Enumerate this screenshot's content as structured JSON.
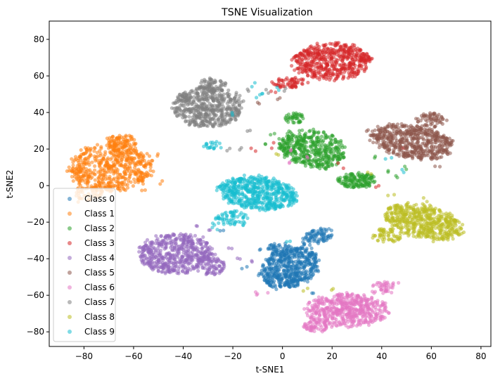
{
  "chart_data": {
    "type": "scatter",
    "title": "TSNE Visualization",
    "xlabel": "t-SNE1",
    "ylabel": "t-SNE2",
    "xlim": [
      -94,
      84
    ],
    "ylim": [
      -88,
      90
    ],
    "xticks": [
      -80,
      -60,
      -40,
      -20,
      0,
      20,
      40,
      60,
      80
    ],
    "yticks": [
      -80,
      -60,
      -40,
      -20,
      0,
      20,
      40,
      60,
      80
    ],
    "grid": false,
    "legend_position": "lower-left",
    "marker_alpha": 0.55,
    "series": [
      {
        "name": "Class 0",
        "color": "#1f77b4",
        "clusters": [
          {
            "center": [
              3,
              -45
            ],
            "rx": 13,
            "ry": 10,
            "n": 520,
            "angle": 0.7
          },
          {
            "center": [
              -1,
              -35
            ],
            "rx": 5,
            "ry": 4,
            "n": 50,
            "angle": 0.0
          },
          {
            "center": [
              14,
              -28
            ],
            "rx": 7,
            "ry": 4,
            "n": 80,
            "angle": 0.5
          }
        ],
        "outliers": [
          [
            -25,
            -25
          ],
          [
            -10,
            -35
          ],
          [
            -15,
            -45
          ],
          [
            12,
            -58
          ]
        ]
      },
      {
        "name": "Class 1",
        "color": "#ff7f0e",
        "clusters": [
          {
            "center": [
              -69,
              10
            ],
            "rx": 17,
            "ry": 13,
            "n": 560,
            "angle": 0.05
          },
          {
            "center": [
              -65,
              24
            ],
            "rx": 6,
            "ry": 4,
            "n": 70,
            "angle": 0.0
          },
          {
            "center": [
              -78,
              -4
            ],
            "rx": 6,
            "ry": 4,
            "n": 50,
            "angle": 0.0
          }
        ],
        "outliers": [
          [
            -50,
            17
          ],
          [
            -54,
            7
          ],
          [
            -48,
            2
          ],
          [
            -83,
            -8
          ],
          [
            -56,
            -2
          ]
        ]
      },
      {
        "name": "Class 2",
        "color": "#2ca02c",
        "clusters": [
          {
            "center": [
              12,
              20
            ],
            "rx": 14,
            "ry": 10,
            "n": 440,
            "angle": -0.35
          },
          {
            "center": [
              30,
              3
            ],
            "rx": 8,
            "ry": 4,
            "n": 140,
            "angle": 0.0
          },
          {
            "center": [
              5,
              37
            ],
            "rx": 4,
            "ry": 3,
            "n": 40,
            "angle": 0.0
          }
        ],
        "outliers": [
          [
            37,
            15
          ],
          [
            42,
            8
          ],
          [
            -8,
            22
          ],
          [
            -3,
            28
          ],
          [
            46,
            5
          ],
          [
            49,
            10
          ]
        ]
      },
      {
        "name": "Class 3",
        "color": "#d62728",
        "clusters": [
          {
            "center": [
              20,
              68
            ],
            "rx": 16,
            "ry": 10,
            "n": 520,
            "angle": 0.05
          },
          {
            "center": [
              3,
              56
            ],
            "rx": 7,
            "ry": 3,
            "n": 60,
            "angle": 0.0
          }
        ],
        "outliers": [
          [
            -4,
            22
          ],
          [
            -12,
            20
          ],
          [
            24,
            10
          ],
          [
            48,
            21
          ],
          [
            38,
            0
          ],
          [
            -3,
            50
          ]
        ]
      },
      {
        "name": "Class 4",
        "color": "#9467bd",
        "clusters": [
          {
            "center": [
              -43,
              -37
            ],
            "rx": 15,
            "ry": 11,
            "n": 520,
            "angle": 0.05
          },
          {
            "center": [
              -29,
              -44
            ],
            "rx": 6,
            "ry": 5,
            "n": 80,
            "angle": 0.0
          }
        ],
        "outliers": [
          [
            -30,
            -24
          ],
          [
            -18,
            -40
          ],
          [
            -22,
            -34
          ],
          [
            -35,
            -22
          ],
          [
            -12,
            -42
          ]
        ]
      },
      {
        "name": "Class 5",
        "color": "#8c564b",
        "clusters": [
          {
            "center": [
              52,
              24
            ],
            "rx": 17,
            "ry": 9,
            "n": 520,
            "angle": -0.25
          },
          {
            "center": [
              60,
              36
            ],
            "rx": 6,
            "ry": 4,
            "n": 60,
            "angle": 0.0
          }
        ],
        "outliers": [
          [
            -2,
            48
          ],
          [
            38,
            27
          ],
          [
            34,
            30
          ],
          [
            62,
            10
          ],
          [
            -10,
            44
          ]
        ]
      },
      {
        "name": "Class 6",
        "color": "#e377c2",
        "clusters": [
          {
            "center": [
              26,
              -68
            ],
            "rx": 17,
            "ry": 9,
            "n": 520,
            "angle": 0.0
          },
          {
            "center": [
              14,
              -77
            ],
            "rx": 6,
            "ry": 3,
            "n": 60,
            "angle": 0.0
          },
          {
            "center": [
              40,
              -56
            ],
            "rx": 5,
            "ry": 4,
            "n": 40,
            "angle": 0.0
          }
        ],
        "outliers": [
          [
            10,
            16
          ],
          [
            3,
            12
          ],
          [
            -8,
            -58
          ],
          [
            -10,
            -60
          ],
          [
            46,
            -53
          ],
          [
            4,
            20
          ]
        ]
      },
      {
        "name": "Class 7",
        "color": "#7f7f7f",
        "clusters": [
          {
            "center": [
              -30,
              43
            ],
            "rx": 14,
            "ry": 11,
            "n": 520,
            "angle": 0.05
          },
          {
            "center": [
              -28,
              55
            ],
            "rx": 6,
            "ry": 4,
            "n": 60,
            "angle": 0.0
          }
        ],
        "outliers": [
          [
            -22,
            20
          ],
          [
            -18,
            20
          ],
          [
            2,
            52
          ],
          [
            -6,
            52
          ],
          [
            -14,
            30
          ],
          [
            -14,
            52
          ]
        ]
      },
      {
        "name": "Class 8",
        "color": "#bcbd22",
        "clusters": [
          {
            "center": [
              57,
              -20
            ],
            "rx": 16,
            "ry": 9,
            "n": 520,
            "angle": -0.35
          },
          {
            "center": [
              42,
              -27
            ],
            "rx": 6,
            "ry": 4,
            "n": 60,
            "angle": 0.0
          }
        ],
        "outliers": [
          [
            -2,
            17
          ],
          [
            9,
            -56
          ],
          [
            20,
            -56
          ],
          [
            36,
            7
          ],
          [
            58,
            -8
          ],
          [
            44,
            -6
          ]
        ]
      },
      {
        "name": "Class 9",
        "color": "#17becf",
        "clusters": [
          {
            "center": [
              -10,
              -4
            ],
            "rx": 16,
            "ry": 9,
            "n": 560,
            "angle": -0.15
          },
          {
            "center": [
              -20,
              -18
            ],
            "rx": 7,
            "ry": 4,
            "n": 60,
            "angle": 0.0
          },
          {
            "center": [
              -28,
              22
            ],
            "rx": 4,
            "ry": 2,
            "n": 20,
            "angle": 0.0
          }
        ],
        "outliers": [
          [
            -28,
            -22
          ],
          [
            -26,
            -24
          ],
          [
            -20,
            38
          ],
          [
            -12,
            55
          ],
          [
            -8,
            50
          ],
          [
            -2,
            52
          ],
          [
            -10,
            48
          ],
          [
            42,
            14
          ],
          [
            48,
            8
          ],
          [
            -16,
            -22
          ],
          [
            -6,
            0
          ],
          [
            2,
            -30
          ]
        ]
      }
    ]
  }
}
